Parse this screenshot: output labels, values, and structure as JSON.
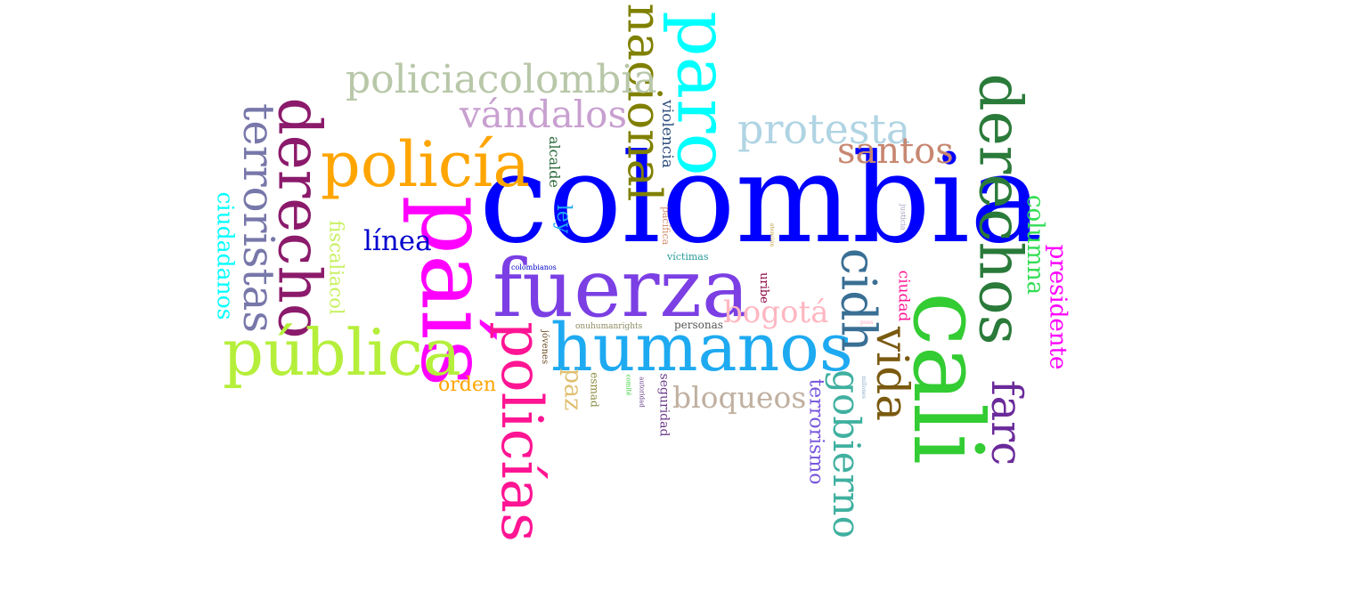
{
  "words": [
    {
      "text": "colombia",
      "color": "#0000ff"
    },
    {
      "text": "país",
      "color": "#ff00ff"
    },
    {
      "text": "cali",
      "color": "#33cc33"
    },
    {
      "text": "fuerza",
      "color": "#7b3fe4"
    },
    {
      "text": "humanos",
      "color": "#1eaaf1"
    },
    {
      "text": "policía",
      "color": "#ffa500"
    },
    {
      "text": "derecho",
      "color": "#8b1a6b"
    },
    {
      "text": "paro",
      "color": "#00ffff"
    },
    {
      "text": "pública",
      "color": "#b5ef3b"
    },
    {
      "text": "derechos",
      "color": "#2a7a3a"
    },
    {
      "text": "policías",
      "color": "#ff1493"
    },
    {
      "text": "nacional",
      "color": "#808000"
    },
    {
      "text": "terroristas",
      "color": "#7777aa"
    },
    {
      "text": "cidh",
      "color": "#3a6f94"
    },
    {
      "text": "policiacolombia",
      "color": "#b8c7a8"
    },
    {
      "text": "vándalos",
      "color": "#c8a0d0"
    },
    {
      "text": "protesta",
      "color": "#b0d4e3"
    },
    {
      "text": "santos",
      "color": "#c78770"
    },
    {
      "text": "vida",
      "color": "#7a5a10"
    },
    {
      "text": "gobierno",
      "color": "#40b0a0"
    },
    {
      "text": "farc",
      "color": "#6a2a9a"
    },
    {
      "text": "columna",
      "color": "#33dd55"
    },
    {
      "text": "presidente",
      "color": "#ff00ff"
    },
    {
      "text": "ciudadanos",
      "color": "#00ffff"
    },
    {
      "text": "bogotá",
      "color": "#ffb6c1"
    },
    {
      "text": "línea",
      "color": "#0000cd"
    },
    {
      "text": "terrorismo",
      "color": "#7755dd"
    },
    {
      "text": "bloqueos",
      "color": "#c0b0a0"
    },
    {
      "text": "fiscaliacol",
      "color": "#c8f060"
    },
    {
      "text": "paz",
      "color": "#e0c070"
    },
    {
      "text": "orden",
      "color": "#ffa500"
    },
    {
      "text": "ley",
      "color": "#1eaaf1"
    },
    {
      "text": "violencia",
      "color": "#2f4f7f"
    },
    {
      "text": "alcalde",
      "color": "#2a6a3a"
    },
    {
      "text": "ciudad",
      "color": "#ff1493"
    },
    {
      "text": "uribe",
      "color": "#8b0040"
    },
    {
      "text": "pacífica",
      "color": "#d49070"
    },
    {
      "text": "víctimas",
      "color": "#2a9a9a"
    },
    {
      "text": "personas",
      "color": "#555555"
    },
    {
      "text": "seguridad",
      "color": "#6a3a8a"
    },
    {
      "text": "esmad",
      "color": "#8a8a40"
    },
    {
      "text": "colombianos",
      "color": "#0000cd"
    },
    {
      "text": "onuhumanrights",
      "color": "#8a8a60"
    },
    {
      "text": "jóvenes",
      "color": "#6a4a20"
    },
    {
      "text": "justicia",
      "color": "#a0a0c0"
    },
    {
      "text": "atención",
      "color": "#c0a040"
    },
    {
      "text": "autoridad",
      "color": "#6a3a8a"
    },
    {
      "text": "comité",
      "color": "#33cc33"
    },
    {
      "text": "millones",
      "color": "#88aacc"
    },
    {
      "text": "pues",
      "color": "#ffa0c0"
    }
  ]
}
